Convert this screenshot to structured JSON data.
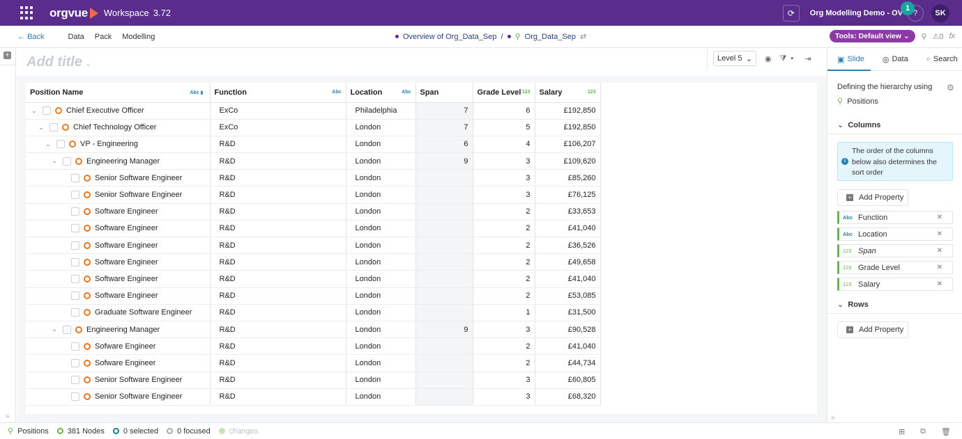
{
  "topbar": {
    "brand": "orgvue",
    "workspace_label": "Workspace",
    "workspace_version": "3.72",
    "demo_name": "Org Modelling Demo - OV",
    "help_label": "?",
    "notification_count": "1",
    "avatar_initials": "SK"
  },
  "nav": {
    "back_label": "Back",
    "items": [
      "Data",
      "Pack",
      "Modelling"
    ],
    "breadcrumb_1": "Overview of Org_Data_Sep",
    "breadcrumb_sep": "/",
    "breadcrumb_2": "Org_Data_Sep",
    "tools_label": "Tools: Default view",
    "alerts_count": "0"
  },
  "canvas": {
    "title_placeholder": "Add title",
    "level_select": "Level 5"
  },
  "table": {
    "headers": {
      "name": "Position Name",
      "function": "Function",
      "location": "Location",
      "span": "Span",
      "grade": "Grade Level",
      "salary": "Salary"
    },
    "text_type_tag": "Abc",
    "number_type_tag": "123",
    "rows": [
      {
        "name": "Chief Executive Officer",
        "function": "ExCo",
        "location": "Philadelphia",
        "span": "7",
        "grade": "6",
        "salary": "£192,850"
      },
      {
        "name": "Chief Technology Officer",
        "function": "ExCo",
        "location": "London",
        "span": "7",
        "grade": "5",
        "salary": "£192,850"
      },
      {
        "name": "VP - Engineering",
        "function": "R&D",
        "location": "London",
        "span": "6",
        "grade": "4",
        "salary": "£106,207"
      },
      {
        "name": "Engineering Manager",
        "function": "R&D",
        "location": "London",
        "span": "9",
        "grade": "3",
        "salary": "£109,620"
      },
      {
        "name": "Senior Software Engineer",
        "function": "R&D",
        "location": "London",
        "span": "",
        "grade": "3",
        "salary": "£85,260"
      },
      {
        "name": "Senior Software Engineer",
        "function": "R&D",
        "location": "London",
        "span": "",
        "grade": "3",
        "salary": "£76,125"
      },
      {
        "name": "Software Engineer",
        "function": "R&D",
        "location": "London",
        "span": "",
        "grade": "2",
        "salary": "£33,653"
      },
      {
        "name": "Software Engineer",
        "function": "R&D",
        "location": "London",
        "span": "",
        "grade": "2",
        "salary": "£41,040"
      },
      {
        "name": "Software Engineer",
        "function": "R&D",
        "location": "London",
        "span": "",
        "grade": "2",
        "salary": "£36,526"
      },
      {
        "name": "Software Engineer",
        "function": "R&D",
        "location": "London",
        "span": "",
        "grade": "2",
        "salary": "£49,658"
      },
      {
        "name": "Software Engineer",
        "function": "R&D",
        "location": "London",
        "span": "",
        "grade": "2",
        "salary": "£41,040"
      },
      {
        "name": "Software Engineer",
        "function": "R&D",
        "location": "London",
        "span": "",
        "grade": "2",
        "salary": "£53,085"
      },
      {
        "name": "Graduate Software Engineer",
        "function": "R&D",
        "location": "London",
        "span": "",
        "grade": "1",
        "salary": "£31,500"
      },
      {
        "name": "Engineering Manager",
        "function": "R&D",
        "location": "London",
        "span": "9",
        "grade": "3",
        "salary": "£90,528"
      },
      {
        "name": "Sofware Engineer",
        "function": "R&D",
        "location": "London",
        "span": "",
        "grade": "2",
        "salary": "£41,040"
      },
      {
        "name": "Sofware Engineer",
        "function": "R&D",
        "location": "London",
        "span": "",
        "grade": "2",
        "salary": "£44,734"
      },
      {
        "name": "Senior Software Engineer",
        "function": "R&D",
        "location": "London",
        "span": "",
        "grade": "3",
        "salary": "£60,805"
      },
      {
        "name": "Senior Software Engineer",
        "function": "R&D",
        "location": "London",
        "span": "",
        "grade": "3",
        "salary": "£68,320"
      }
    ]
  },
  "rpanel": {
    "tabs": [
      "Slide",
      "Data",
      "Search"
    ],
    "hierarchy_label": "Defining the hierarchy using",
    "hierarchy_value": "Positions",
    "columns_label": "Columns",
    "info_text": "The order of the columns below also determines the sort order",
    "add_property_label": "Add Property",
    "properties": [
      {
        "tag": "Abc",
        "name": "Function"
      },
      {
        "tag": "Abc",
        "name": "Location"
      },
      {
        "tag": "123",
        "name": "Span"
      },
      {
        "tag": "123",
        "name": "Grade Level"
      },
      {
        "tag": "123",
        "name": "Salary"
      }
    ],
    "rows_label": "Rows"
  },
  "status": {
    "positions_label": "Positions",
    "nodes_label": "381 Nodes",
    "selected_label": "0 selected",
    "focused_label": "0 focused",
    "changes_label": "changes"
  },
  "colors": {
    "topbar": "#5a2d8c",
    "tools_pill": "#8e3aa6",
    "node_ring": "#e87722",
    "accent": "#2a7fb8",
    "number_tag": "#6ab04c"
  }
}
